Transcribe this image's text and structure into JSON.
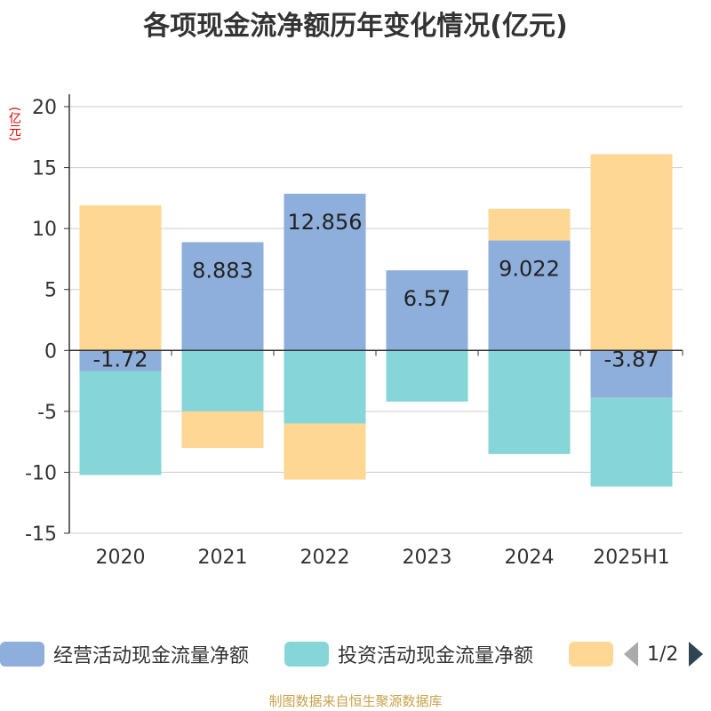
{
  "title": "各项现金流净额历年变化情况(亿元)",
  "unit": "(亿元)",
  "source": "制图数据来自恒生聚源数据库",
  "colors": {
    "operating": "#8eaedb",
    "investing": "#86d5d8",
    "financing": "#fed795",
    "axis": "#333333",
    "grid": "#cccccc"
  },
  "legend": {
    "items": [
      {
        "label": "经营活动现金流量净额"
      },
      {
        "label": "投资活动现金流量净额"
      },
      {
        "label": ""
      }
    ],
    "page": "1/2"
  },
  "chart_data": {
    "type": "bar",
    "stacked": true,
    "categories": [
      "2020",
      "2021",
      "2022",
      "2023",
      "2024",
      "2025H1"
    ],
    "ylim": [
      -15,
      20
    ],
    "yticks": [
      -15,
      -10,
      -5,
      0,
      5,
      10,
      15,
      20
    ],
    "grid": true,
    "legend_position": "bottom",
    "series": [
      {
        "name": "经营活动现金流量净额",
        "values": [
          -1.72,
          8.883,
          12.856,
          6.57,
          9.022,
          -3.87
        ]
      },
      {
        "name": "投资活动现金流量净额",
        "values": [
          -8.5,
          -5.0,
          -6.0,
          -4.2,
          -8.5,
          -7.3
        ]
      },
      {
        "name": "",
        "values": [
          11.9,
          -3.0,
          -4.6,
          0,
          2.6,
          16.1
        ]
      }
    ],
    "data_labels": [
      "-1.72",
      "8.883",
      "12.856",
      "6.57",
      "9.022",
      "-3.87"
    ]
  }
}
